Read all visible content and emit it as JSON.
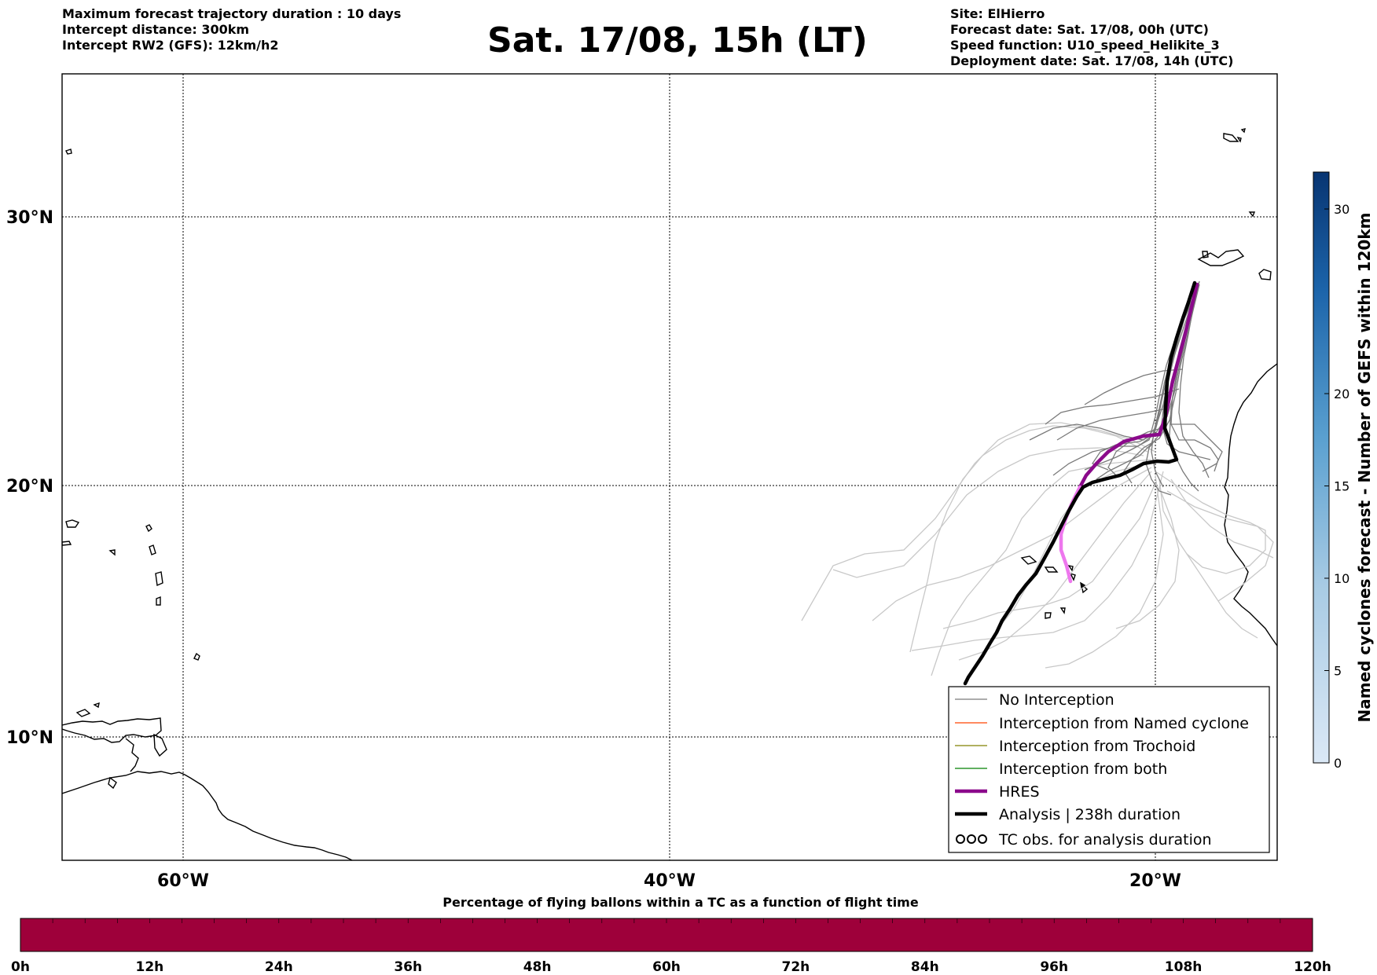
{
  "header": {
    "left": [
      "Maximum forecast trajectory duration : 10 days",
      "Intercept distance: 300km",
      "Intercept RW2 (GFS):  12km/h2"
    ],
    "right": [
      "Site: ElHierro",
      "Forecast date: Sat. 17/08, 00h (UTC)",
      "Speed function: U10_speed_Helikite_3",
      "Deployment date: Sat. 17/08, 14h (UTC)"
    ],
    "title": "Sat. 17/08, 15h (LT)"
  },
  "map": {
    "lon_range": [
      -65,
      15
    ],
    "lat_range": [
      4.5,
      33.8
    ],
    "lat_labels": [
      "30°N",
      "20°N",
      "10°N"
    ],
    "lon_labels": [
      "60°W",
      "40°W",
      "20°W"
    ],
    "grid": "dotted",
    "colors": {
      "no_interception": "#7a7a7a",
      "light_traj": "#c8c8c8",
      "hres": "#8b0a8b",
      "hres_early": "#ee77ee",
      "analysis": "#000000",
      "named_cyclone": "#ff4500",
      "trochoid": "#808000",
      "both": "#008000"
    }
  },
  "legend": {
    "placement": "lower-right",
    "items": [
      {
        "label": "No Interception",
        "style": "thin-gray"
      },
      {
        "label": "Interception from Named cyclone",
        "style": "thin-orange"
      },
      {
        "label": "Interception from Trochoid",
        "style": "thin-olive"
      },
      {
        "label": "Interception from both",
        "style": "thin-green"
      },
      {
        "label": "HRES",
        "style": "thick-purple"
      },
      {
        "label": "Analysis | 238h duration",
        "style": "thick-black"
      },
      {
        "label": "TC obs. for analysis duration",
        "style": "tc-symbols"
      }
    ]
  },
  "colorbar_right": {
    "label": "Named cyclones forecast - Number of GEFS within 120km",
    "ticks": [
      "0",
      "5",
      "10",
      "15",
      "20",
      "30"
    ],
    "range": [
      0,
      32
    ]
  },
  "colorbar_bottom": {
    "title": "Percentage of flying ballons within a TC as a function of flight time",
    "ticks": [
      "0h",
      "12h",
      "24h",
      "36h",
      "48h",
      "60h",
      "72h",
      "84h",
      "96h",
      "108h",
      "120h"
    ],
    "fill_color": "#9e003a"
  }
}
